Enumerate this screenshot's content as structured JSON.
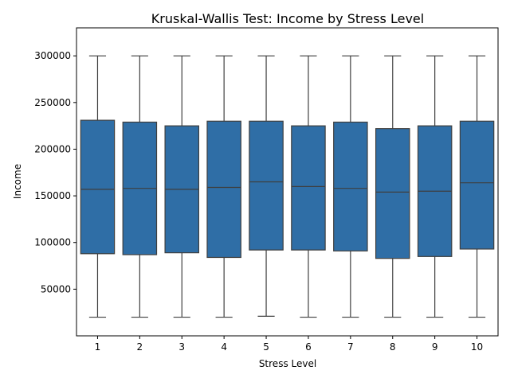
{
  "chart_data": {
    "type": "box",
    "title": "Kruskal-Wallis Test: Income by Stress Level",
    "xlabel": "Stress Level",
    "ylabel": "Income",
    "ylim": [
      0,
      330000
    ],
    "yticks": [
      50000,
      100000,
      150000,
      200000,
      250000,
      300000
    ],
    "grid": false,
    "legend": "none",
    "color": "#2f6ea6",
    "categories": [
      "1",
      "2",
      "3",
      "4",
      "5",
      "6",
      "7",
      "8",
      "9",
      "10"
    ],
    "boxes": [
      {
        "category": "1",
        "whisker_low": 20000,
        "q1": 88000,
        "median": 157000,
        "q3": 231000,
        "whisker_high": 300000
      },
      {
        "category": "2",
        "whisker_low": 20000,
        "q1": 87000,
        "median": 158000,
        "q3": 229000,
        "whisker_high": 300000
      },
      {
        "category": "3",
        "whisker_low": 20000,
        "q1": 89000,
        "median": 157000,
        "q3": 225000,
        "whisker_high": 300000
      },
      {
        "category": "4",
        "whisker_low": 20000,
        "q1": 84000,
        "median": 159000,
        "q3": 230000,
        "whisker_high": 300000
      },
      {
        "category": "5",
        "whisker_low": 21000,
        "q1": 92000,
        "median": 165000,
        "q3": 230000,
        "whisker_high": 300000
      },
      {
        "category": "6",
        "whisker_low": 20000,
        "q1": 92000,
        "median": 160000,
        "q3": 225000,
        "whisker_high": 300000
      },
      {
        "category": "7",
        "whisker_low": 20000,
        "q1": 91000,
        "median": 158000,
        "q3": 229000,
        "whisker_high": 300000
      },
      {
        "category": "8",
        "whisker_low": 20000,
        "q1": 83000,
        "median": 154000,
        "q3": 222000,
        "whisker_high": 300000
      },
      {
        "category": "9",
        "whisker_low": 20000,
        "q1": 85000,
        "median": 155000,
        "q3": 225000,
        "whisker_high": 300000
      },
      {
        "category": "10",
        "whisker_low": 20000,
        "q1": 93000,
        "median": 164000,
        "q3": 230000,
        "whisker_high": 300000
      }
    ]
  }
}
